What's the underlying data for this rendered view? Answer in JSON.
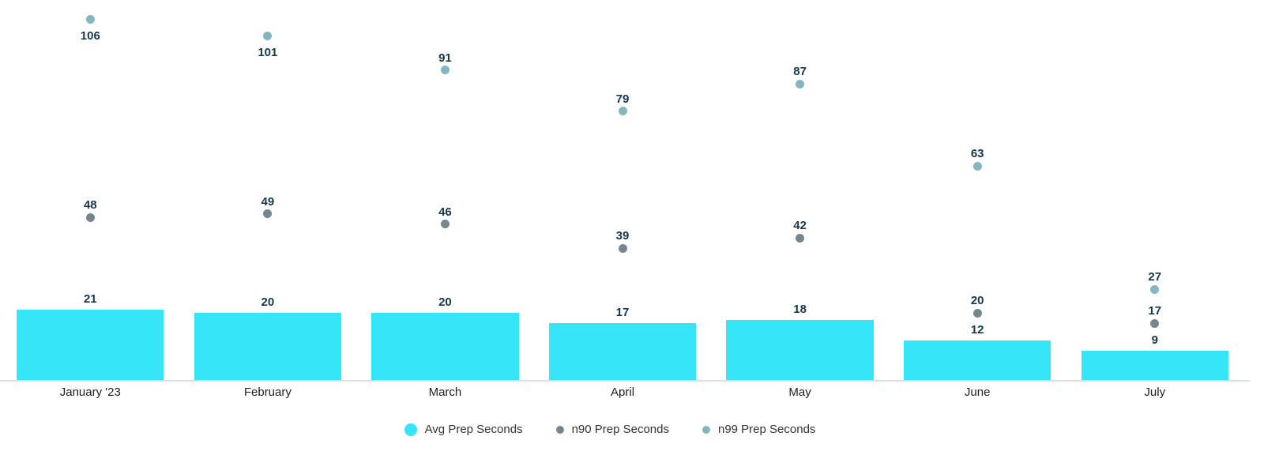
{
  "chart_data": {
    "type": "bar",
    "subtype": "combo-bar-scatter",
    "categories": [
      "January '23",
      "February",
      "March",
      "April",
      "May",
      "June",
      "July"
    ],
    "series": [
      {
        "name": "Avg Prep Seconds",
        "render": "bar",
        "color": "#35E5F8",
        "values": [
          21,
          20,
          20,
          17,
          18,
          12,
          9
        ]
      },
      {
        "name": "n90 Prep Seconds",
        "render": "scatter",
        "color": "#76868F",
        "values": [
          48,
          49,
          46,
          39,
          42,
          20,
          17
        ]
      },
      {
        "name": "n99 Prep Seconds",
        "render": "scatter",
        "color": "#82B7BF",
        "values": [
          106,
          101,
          91,
          79,
          87,
          63,
          27
        ]
      }
    ],
    "title": "",
    "xlabel": "",
    "ylabel": "",
    "ylim": [
      0,
      111
    ],
    "grid": false,
    "y_axis_visible": false,
    "value_labels": true,
    "n99_label_below_for": [
      "January '23",
      "February"
    ],
    "legend_position": "bottom"
  },
  "colors": {
    "value_label": "#16384C",
    "x_axis_label": "#222222",
    "axis_line": "#dcdfe5",
    "background": "#ffffff"
  }
}
